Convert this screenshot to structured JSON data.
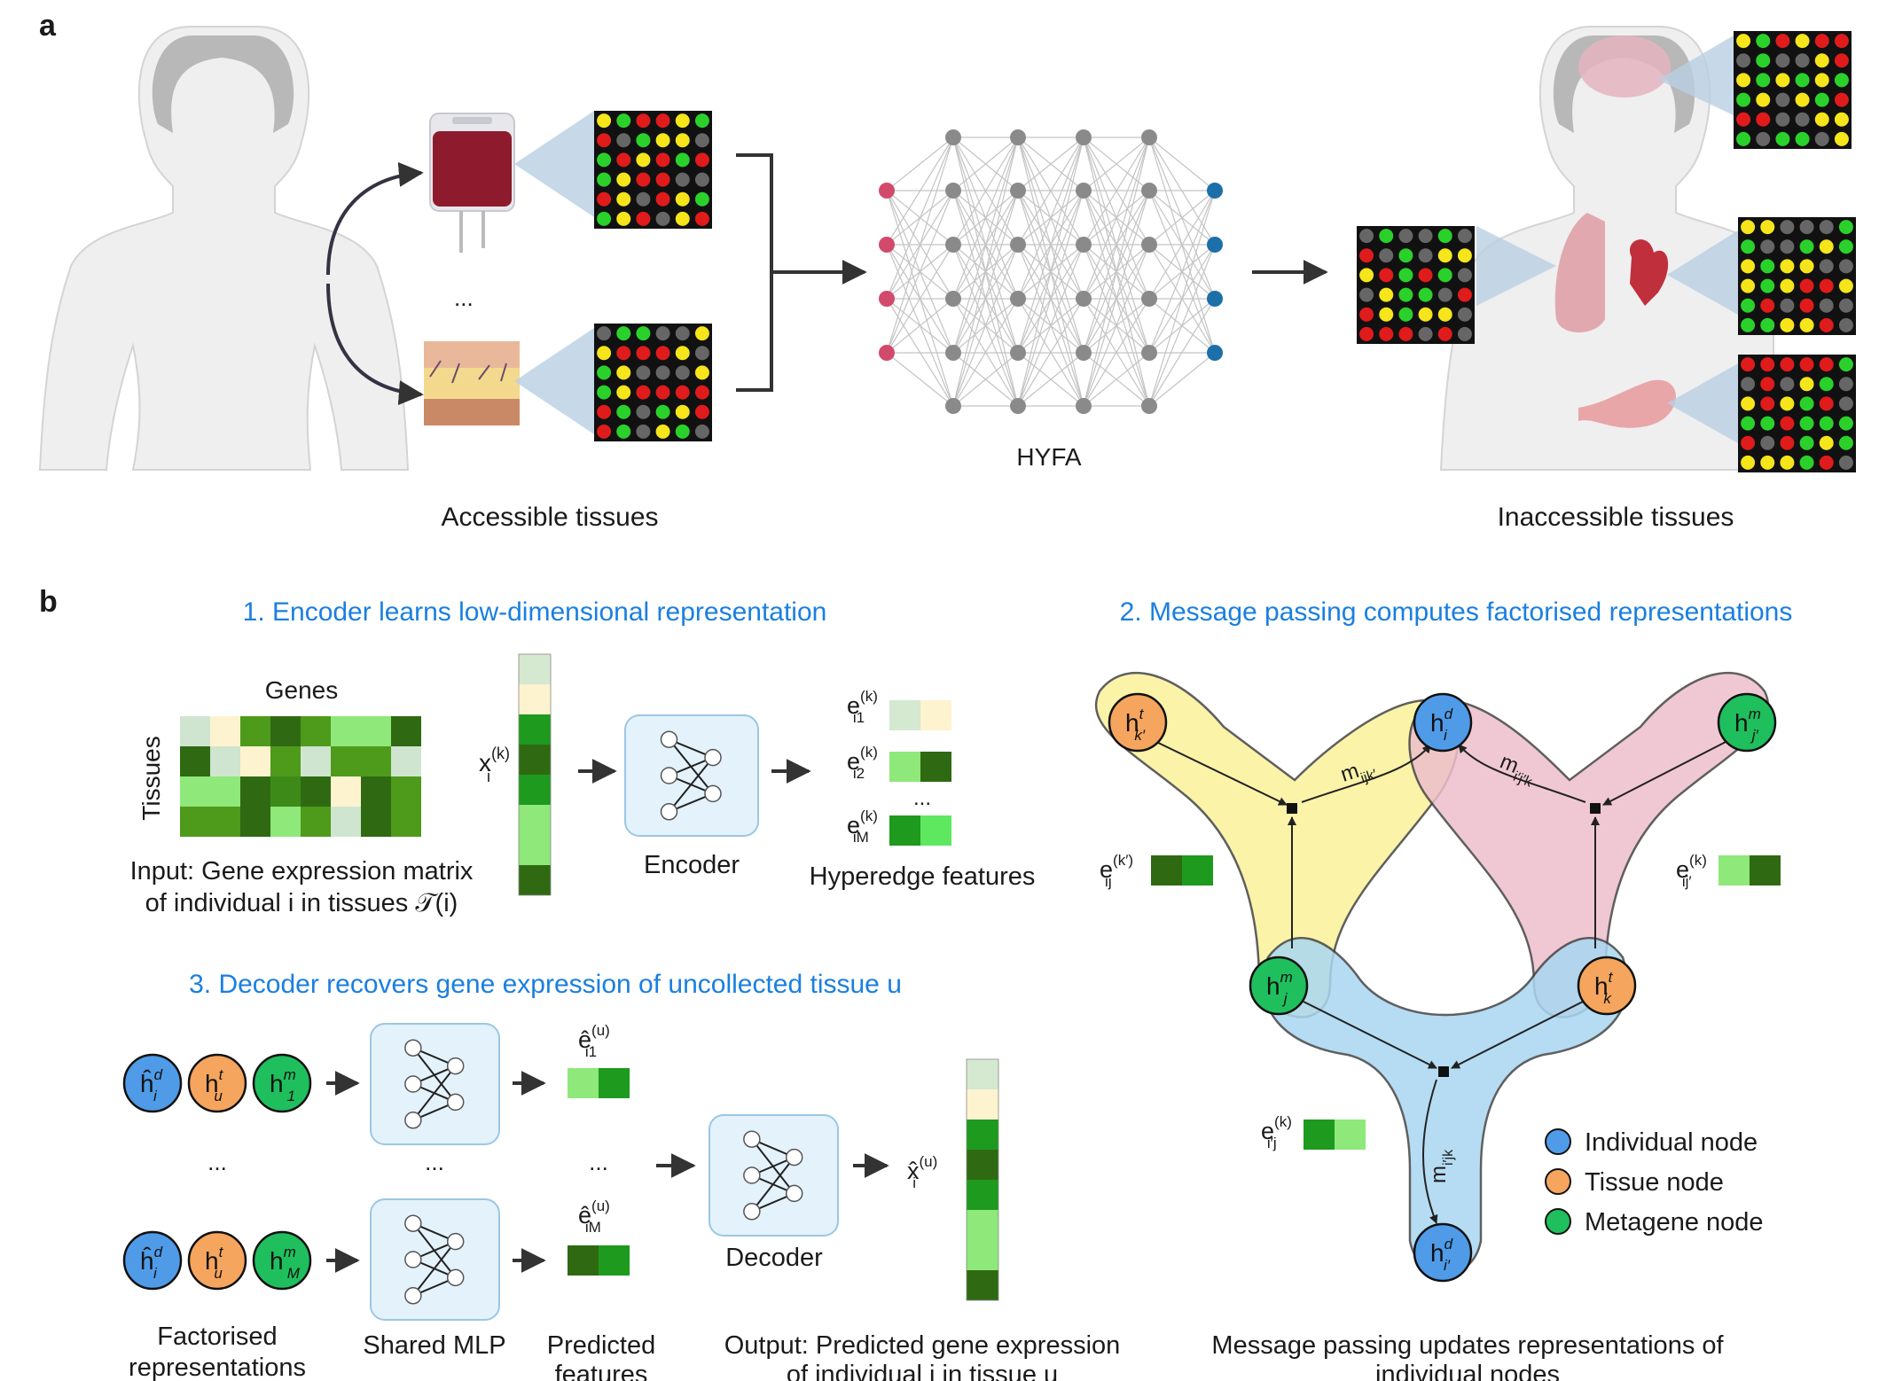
{
  "panel_a": {
    "letter": "a",
    "ellipsis": "...",
    "accessible_label": "Accessible tissues",
    "model_label": "HYFA",
    "inaccessible_label": "Inaccessible tissues"
  },
  "panel_b": {
    "letter": "b",
    "step1_title": "1. Encoder learns low-dimensional representation",
    "step2_title": "2. Message passing computes factorised representations",
    "step3_title": "3. Decoder recovers gene expression of uncollected tissue u",
    "genes_label": "Genes",
    "tissues_label": "Tissues",
    "input_caption_line1": "Input: Gene expression matrix",
    "input_caption_line2": "of individual i in tissues 𝒯(i)",
    "x_label": "x",
    "x_sup": "(k)",
    "x_sub": "i",
    "encoder_label": "Encoder",
    "hyperedge_label": "Hyperedge features",
    "e1_sub": "i1",
    "e2_sub": "i2",
    "eM_sub": "iM",
    "e_sup": "(k)",
    "e_base": "e",
    "ellipsis": "...",
    "factorised_line1": "Factorised",
    "factorised_line2": "representations",
    "shared_mlp": "Shared MLP",
    "predicted_line1": "Predicted",
    "predicted_line2": "features",
    "decoder_label": "Decoder",
    "output_line1": "Output: Predicted gene expression",
    "output_line2": "of individual i in tissue u",
    "xhat_label": "x̂",
    "xhat_sup": "(u)",
    "xhat_sub": "i",
    "ehat_base": "ê",
    "ehat_sup": "(u)",
    "ehat1_sub": "i1",
    "ehatM_sub": "iM",
    "hd": "ĥ",
    "h": "h",
    "sup_d": "d",
    "sup_t": "t",
    "sup_m": "m",
    "sub_i": "i",
    "sub_u": "u",
    "sub_1": "1",
    "sub_M": "M",
    "mp_caption_line1": "Message passing updates representations of",
    "mp_caption_line2": "individual nodes",
    "nodes": {
      "top_left": {
        "sup": "t",
        "sub": "k′"
      },
      "top_mid": {
        "sup": "d",
        "sub": "i"
      },
      "top_right": {
        "sup": "m",
        "sub": "j′"
      },
      "mid_left": {
        "sup": "m",
        "sub": "j"
      },
      "mid_right": {
        "sup": "t",
        "sub": "k"
      },
      "bottom": {
        "sup": "d",
        "sub": "i′"
      }
    },
    "messages": {
      "m1": {
        "base": "m",
        "sub": "ijk′"
      },
      "m2": {
        "base": "m",
        "sub": "i′j′k"
      },
      "m3": {
        "base": "m",
        "sub": "i′jk"
      }
    },
    "edge_feats": {
      "left": {
        "base": "e",
        "sup": "(k′)",
        "sub": "ij"
      },
      "right": {
        "base": "e",
        "sup": "(k)",
        "sub": "ij′"
      },
      "bottom": {
        "base": "e",
        "sup": "(k)",
        "sub": "i′j"
      }
    },
    "legend": [
      {
        "label": "Individual node",
        "color": "#4f9be8"
      },
      {
        "label": "Tissue node",
        "color": "#f5a55e"
      },
      {
        "label": "Metagene node",
        "color": "#1fbf5e"
      }
    ]
  },
  "colors": {
    "title_blue": "#1a7fe0",
    "hyper_yellow": "#fbf29a",
    "hyper_pink": "#eebfcc",
    "hyper_blue": "#a9d7f2",
    "nn_input": "#d14a6c",
    "nn_hidden": "#8a8a8a",
    "nn_output": "#1c6fa8"
  }
}
